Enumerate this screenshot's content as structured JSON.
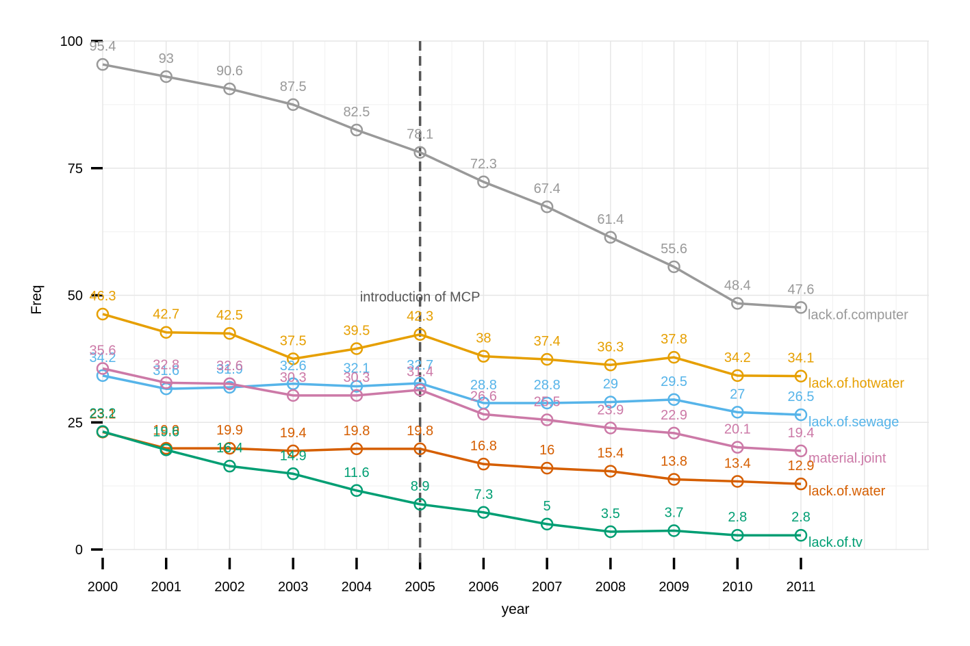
{
  "chart_data": {
    "type": "line",
    "xlabel": "year",
    "ylabel": "Freq",
    "x": [
      2000,
      2001,
      2002,
      2003,
      2004,
      2005,
      2006,
      2007,
      2008,
      2009,
      2010,
      2011
    ],
    "xlim": [
      2000,
      2013
    ],
    "ylim": [
      0,
      100
    ],
    "yticks": [
      0,
      25,
      50,
      75,
      100
    ],
    "grid": true,
    "legend": "none (series labels at right end of lines)",
    "annotations": [
      {
        "text": "introduction of MCP",
        "x": 2005,
        "y": 50,
        "style": "dashed vertical line"
      }
    ],
    "series": [
      {
        "name": "lack.of.computer",
        "color": "#999999",
        "values": [
          95.4,
          93,
          90.6,
          87.5,
          82.5,
          78.1,
          72.3,
          67.4,
          61.4,
          55.6,
          48.4,
          47.6
        ]
      },
      {
        "name": "lack.of.hotwater",
        "color": "#E69F00",
        "values": [
          46.3,
          42.7,
          42.5,
          37.5,
          39.5,
          42.3,
          38,
          37.4,
          36.3,
          37.8,
          34.2,
          34.1
        ]
      },
      {
        "name": "lack.of.sewage",
        "color": "#56B4E9",
        "values": [
          34.2,
          31.6,
          31.9,
          32.6,
          32.1,
          32.7,
          28.8,
          28.8,
          29,
          29.5,
          27,
          26.5
        ]
      },
      {
        "name": "material.joint",
        "color": "#CC79A7",
        "values": [
          35.6,
          32.8,
          32.6,
          30.3,
          30.3,
          31.4,
          26.6,
          25.5,
          23.9,
          22.9,
          20.1,
          19.4
        ]
      },
      {
        "name": "lack.of.water",
        "color": "#D55E00",
        "values": [
          23.1,
          19.9,
          19.9,
          19.4,
          19.8,
          19.8,
          16.8,
          16,
          15.4,
          13.8,
          13.4,
          12.9
        ]
      },
      {
        "name": "lack.of.tv",
        "color": "#009E73",
        "values": [
          23.2,
          19.6,
          16.4,
          14.9,
          11.6,
          8.9,
          7.3,
          5,
          3.5,
          3.7,
          2.8,
          2.8
        ]
      }
    ]
  }
}
